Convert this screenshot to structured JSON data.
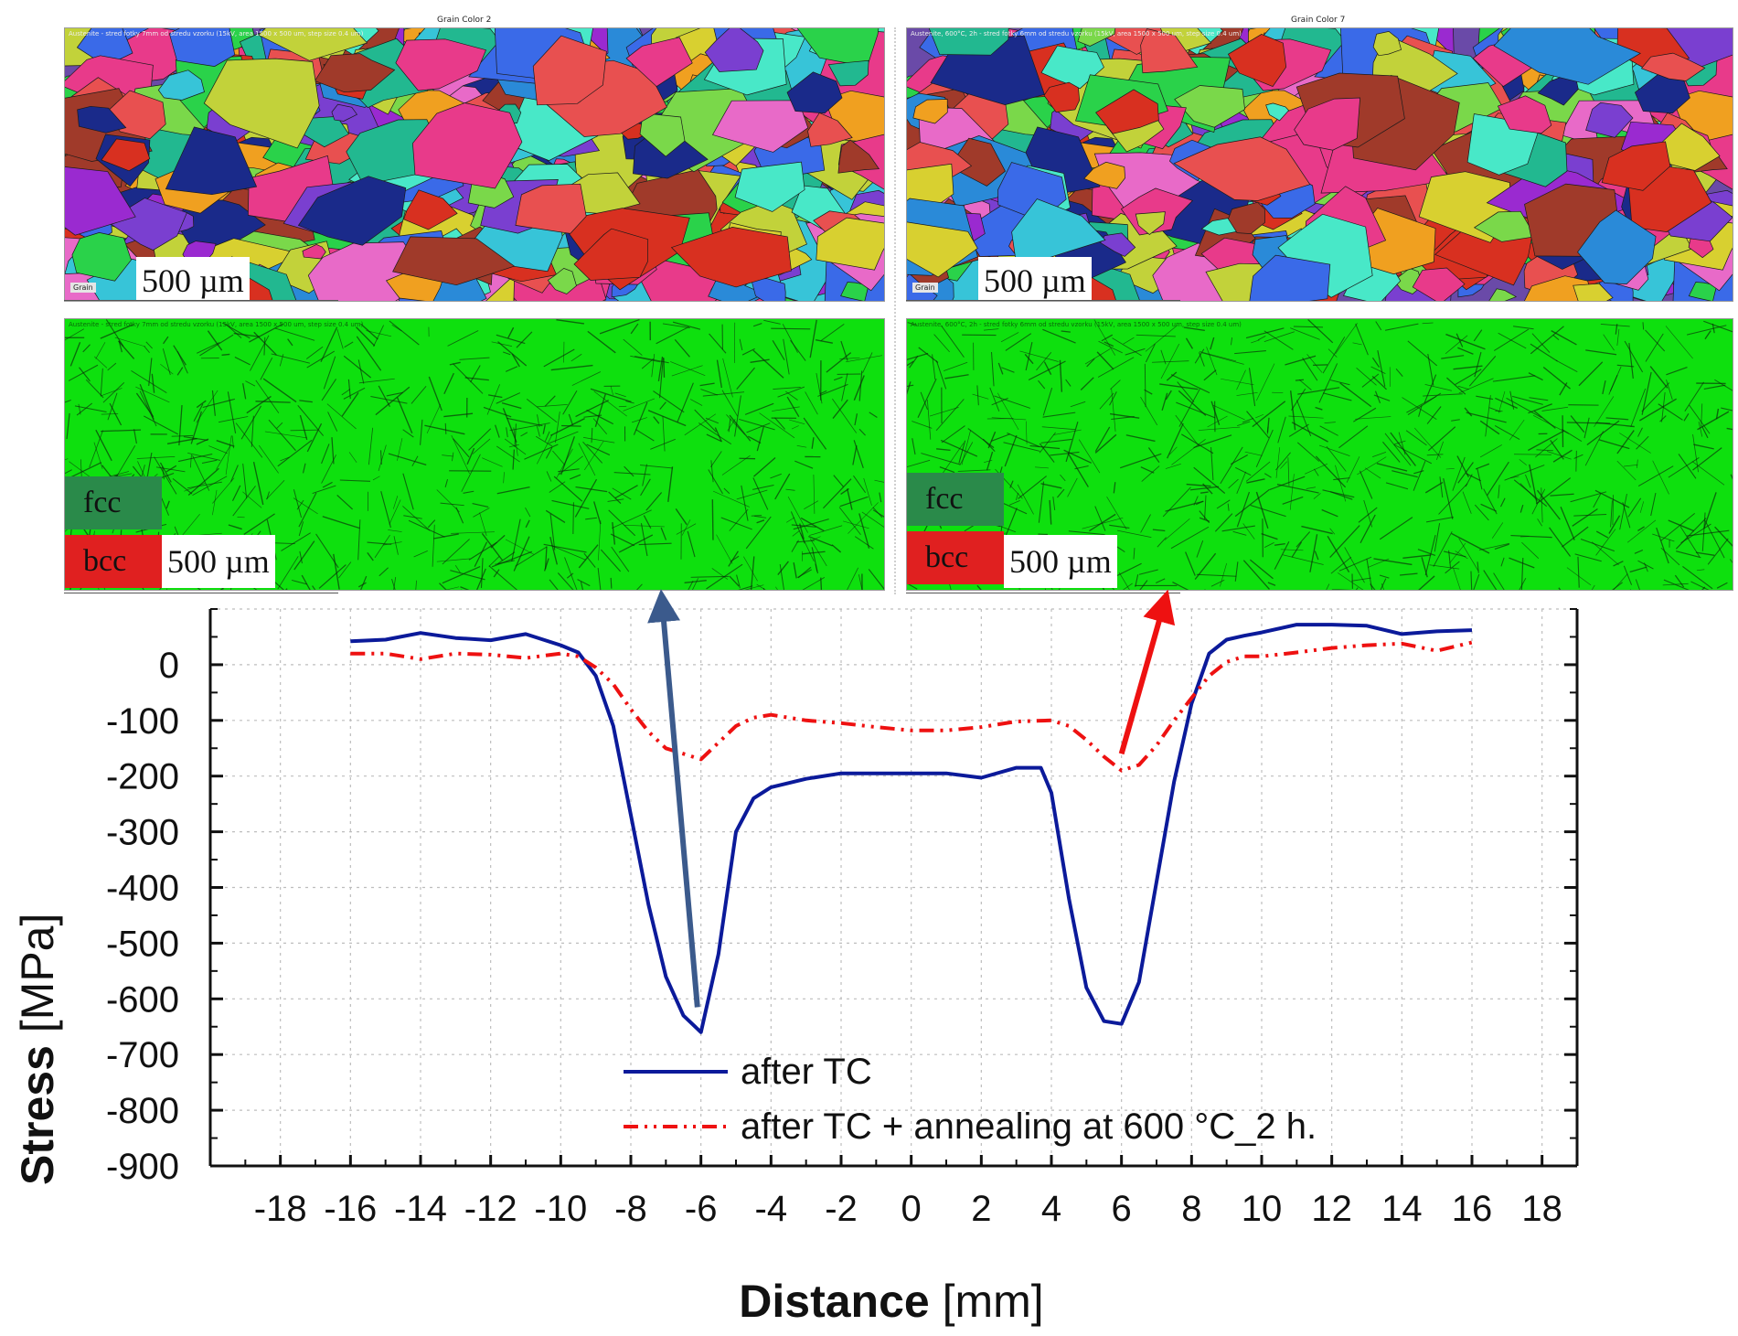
{
  "panels": {
    "grain_left": {
      "title": "Grain Color 2",
      "header": "Austenite - stred fotky 7mm od stredu vzorku (15kV, area 1500 x 500 um, step size 0.4 um)",
      "scale_bar": "500 µm",
      "tag": "Grain"
    },
    "grain_right": {
      "title": "Grain Color 7",
      "header": "Austenite, 600°C, 2h - stred fotky 6mm od stredu vzorku (15kV, area 1500 x 500 um, step size 0.4 um)",
      "scale_bar": "500 µm",
      "tag": "Grain"
    },
    "phase_left": {
      "header": "Austenite - stred fotky 7mm od stredu vzorku (15kV, area 1500 x 500 um, step size 0.4 um)",
      "scale_bar": "500 µm",
      "fcc_label": "fcc",
      "bcc_label": "bcc"
    },
    "phase_right": {
      "header": "Austenite, 600°C, 2h - stred fotky 6mm od stredu vzorku (15kV, area 1500 x 500 um, step size 0.4 um)",
      "scale_bar": "500 µm",
      "fcc_label": "fcc",
      "bcc_label": "bcc"
    }
  },
  "colors": {
    "after_tc": "#0b1a9a",
    "after_tc_annealing": "#ee1111",
    "arrow_left": "#3b5a8c",
    "arrow_right": "#ee1111",
    "phase_green": "#0ee00e",
    "fcc_key": "#2a8a4a",
    "bcc_key": "#e02020"
  },
  "chart_data": {
    "type": "line",
    "title": "",
    "xlabel_bold": "Distance",
    "xlabel_unit": " [mm]",
    "ylabel_bold": "Stress",
    "ylabel_unit": " [MPa]",
    "xlim": [
      -20,
      19
    ],
    "ylim": [
      -900,
      100
    ],
    "grid": true,
    "legend_position": "bottom-center",
    "x_ticks": [
      -18,
      -16,
      -14,
      -12,
      -10,
      -8,
      -6,
      -4,
      -2,
      0,
      2,
      4,
      6,
      8,
      10,
      12,
      14,
      16,
      18
    ],
    "x_tick_labels": [
      "-18",
      "-16",
      "-14",
      "-12",
      "-10",
      "-8",
      "-6",
      "-4",
      "-2",
      "0",
      "2",
      "4",
      "6",
      "8",
      "10",
      "12",
      "14",
      "16",
      "18"
    ],
    "y_ticks": [
      0,
      -100,
      -200,
      -300,
      -400,
      -500,
      -600,
      -700,
      -800,
      -900
    ],
    "y_tick_labels": [
      "0",
      "-100",
      "-200",
      "-300",
      "-400",
      "-500",
      "-600",
      "-700",
      "-800",
      "-900"
    ],
    "series": [
      {
        "name": "after TC",
        "style": "solid",
        "x": [
          -16,
          -15,
          -14,
          -13,
          -12,
          -11,
          -10,
          -9.5,
          -9,
          -8.5,
          -8,
          -7.5,
          -7,
          -6.5,
          -6,
          -5.5,
          -5,
          -4.5,
          -4,
          -3,
          -2,
          -1,
          0,
          1,
          2,
          3,
          3.7,
          4,
          4.5,
          5,
          5.5,
          6,
          6.5,
          7,
          7.5,
          8,
          8.5,
          9,
          9.5,
          10,
          11,
          12,
          13,
          14,
          15,
          16
        ],
        "y": [
          42,
          45,
          57,
          48,
          44,
          55,
          35,
          22,
          -20,
          -110,
          -270,
          -430,
          -560,
          -630,
          -660,
          -520,
          -300,
          -240,
          -220,
          -205,
          -195,
          -195,
          -195,
          -195,
          -203,
          -185,
          -185,
          -230,
          -420,
          -580,
          -640,
          -645,
          -570,
          -390,
          -210,
          -70,
          20,
          45,
          52,
          58,
          72,
          72,
          70,
          55,
          60,
          62
        ]
      },
      {
        "name": "after TC + annealing at 600 °C_2 h.",
        "style": "dashdot",
        "x": [
          -16,
          -15,
          -14,
          -13,
          -12,
          -11,
          -10,
          -9.5,
          -9,
          -8.5,
          -8,
          -7.5,
          -7,
          -6.5,
          -6,
          -5.5,
          -5,
          -4.5,
          -4,
          -3,
          -2,
          -1,
          0,
          1,
          2,
          3,
          4,
          4.5,
          5,
          5.5,
          6,
          6.5,
          7,
          7.5,
          8,
          8.5,
          9,
          9.5,
          10,
          11,
          12,
          13,
          14,
          15,
          16
        ],
        "y": [
          20,
          20,
          10,
          20,
          18,
          12,
          20,
          15,
          -5,
          -35,
          -80,
          -120,
          -150,
          -160,
          -170,
          -140,
          -110,
          -95,
          -90,
          -100,
          -105,
          -112,
          -118,
          -118,
          -112,
          -102,
          -100,
          -110,
          -135,
          -165,
          -190,
          -180,
          -145,
          -100,
          -60,
          -20,
          5,
          15,
          15,
          22,
          30,
          35,
          38,
          25,
          40
        ]
      }
    ]
  }
}
